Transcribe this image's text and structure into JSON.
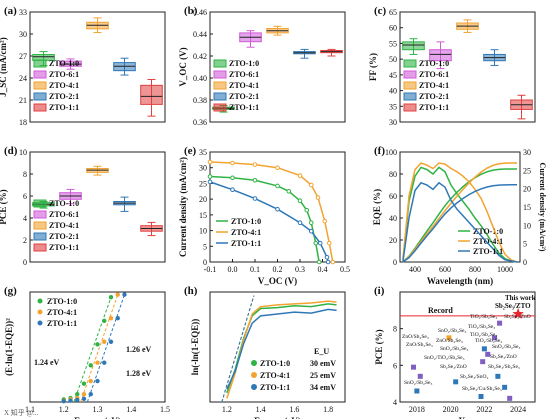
{
  "colors": {
    "green": "#2fb344",
    "magenta": "#d05bd8",
    "orange": "#f2a330",
    "blue": "#2f78b8",
    "red": "#e04040",
    "record": "#e8262d"
  },
  "chart_data": [
    {
      "type": "box",
      "panel": "(a)",
      "ylabel": "J_SC (mA/cm²)",
      "ylim": [
        18,
        33
      ],
      "ytick_labels": [
        "18",
        "21",
        "24",
        "27",
        "30",
        "33"
      ],
      "legend": [
        "ZTO-1:0",
        "ZTO-6:1",
        "ZTO-4:1",
        "ZTO-2:1",
        "ZTO-1:1"
      ],
      "boxes": [
        {
          "name": "ZTO-1:0",
          "q1": 26.4,
          "median": 26.9,
          "q3": 27.2,
          "min": 25.7,
          "max": 27.6,
          "color": "#2fb344"
        },
        {
          "name": "ZTO-6:1",
          "q1": 25.6,
          "median": 25.9,
          "q3": 26.3,
          "min": 25.2,
          "max": 26.6,
          "color": "#d05bd8"
        },
        {
          "name": "ZTO-4:1",
          "q1": 30.7,
          "median": 31.2,
          "q3": 31.6,
          "min": 30.2,
          "max": 32.2,
          "color": "#f2a330"
        },
        {
          "name": "ZTO-2:1",
          "q1": 25.0,
          "median": 25.6,
          "q3": 26.1,
          "min": 24.4,
          "max": 26.7,
          "color": "#2f78b8"
        },
        {
          "name": "ZTO-1:1",
          "q1": 20.4,
          "median": 21.5,
          "q3": 23.0,
          "min": 18.8,
          "max": 23.8,
          "color": "#e04040"
        }
      ]
    },
    {
      "type": "box",
      "panel": "(b)",
      "ylabel": "V_OC (V)",
      "ylim": [
        0.36,
        0.46
      ],
      "ytick_labels": [
        "0.36",
        "0.38",
        "0.40",
        "0.42",
        "0.44",
        "0.46"
      ],
      "legend": [
        "ZTO-1:0",
        "ZTO-6:1",
        "ZTO-4:1",
        "ZTO-2:1",
        "ZTO-1:1"
      ],
      "boxes": [
        {
          "name": "ZTO-1:0",
          "q1": 0.3715,
          "median": 0.3725,
          "q3": 0.3735,
          "min": 0.369,
          "max": 0.375,
          "color": "#2fb344"
        },
        {
          "name": "ZTO-6:1",
          "q1": 0.433,
          "median": 0.437,
          "q3": 0.441,
          "min": 0.428,
          "max": 0.443,
          "color": "#d05bd8"
        },
        {
          "name": "ZTO-4:1",
          "q1": 0.441,
          "median": 0.443,
          "q3": 0.445,
          "min": 0.439,
          "max": 0.447,
          "color": "#f2a330"
        },
        {
          "name": "ZTO-2:1",
          "q1": 0.422,
          "median": 0.423,
          "q3": 0.424,
          "min": 0.418,
          "max": 0.426,
          "color": "#2f78b8"
        },
        {
          "name": "ZTO-1:1",
          "q1": 0.423,
          "median": 0.424,
          "q3": 0.425,
          "min": 0.42,
          "max": 0.426,
          "color": "#e04040"
        }
      ]
    },
    {
      "type": "box",
      "panel": "(c)",
      "ylabel": "FF (%)",
      "ylim": [
        30,
        65
      ],
      "ytick_labels": [
        "30",
        "35",
        "40",
        "45",
        "50",
        "55",
        "60",
        "65"
      ],
      "legend": [
        "ZTO-1:0",
        "ZTO-6:1",
        "ZTO-4:1",
        "ZTO-2:1",
        "ZTO-1:1"
      ],
      "boxes": [
        {
          "name": "ZTO-1:0",
          "q1": 53.0,
          "median": 54.5,
          "q3": 55.5,
          "min": 51.5,
          "max": 56.5,
          "color": "#2fb344"
        },
        {
          "name": "ZTO-6:1",
          "q1": 49.5,
          "median": 51.5,
          "q3": 53.0,
          "min": 47.0,
          "max": 55.5,
          "color": "#d05bd8"
        },
        {
          "name": "ZTO-4:1",
          "q1": 59.5,
          "median": 60.5,
          "q3": 61.5,
          "min": 58.5,
          "max": 62.5,
          "color": "#f2a330"
        },
        {
          "name": "ZTO-2:1",
          "q1": 49.5,
          "median": 50.5,
          "q3": 51.5,
          "min": 48.0,
          "max": 53.0,
          "color": "#2f78b8"
        },
        {
          "name": "ZTO-1:1",
          "q1": 34.0,
          "median": 35.5,
          "q3": 37.0,
          "min": 31.0,
          "max": 38.5,
          "color": "#e04040"
        }
      ]
    },
    {
      "type": "box",
      "panel": "(d)",
      "ylabel": "PCE (%)",
      "ylim": [
        0,
        10
      ],
      "ytick_labels": [
        "0",
        "2",
        "4",
        "6",
        "8",
        "10"
      ],
      "legend": [
        "ZTO-1:0",
        "ZTO-6:1",
        "ZTO-4:1",
        "ZTO-2:1",
        "ZTO-1:1"
      ],
      "boxes": [
        {
          "name": "ZTO-1:0",
          "q1": 5.1,
          "median": 5.25,
          "q3": 5.4,
          "min": 4.9,
          "max": 5.5,
          "color": "#2fb344"
        },
        {
          "name": "ZTO-6:1",
          "q1": 5.7,
          "median": 6.0,
          "q3": 6.3,
          "min": 5.3,
          "max": 6.6,
          "color": "#d05bd8"
        },
        {
          "name": "ZTO-4:1",
          "q1": 8.15,
          "median": 8.35,
          "q3": 8.5,
          "min": 7.9,
          "max": 8.7,
          "color": "#f2a330"
        },
        {
          "name": "ZTO-2:1",
          "q1": 5.2,
          "median": 5.35,
          "q3": 5.5,
          "min": 4.6,
          "max": 5.9,
          "color": "#2f78b8"
        },
        {
          "name": "ZTO-1:1",
          "q1": 2.8,
          "median": 3.05,
          "q3": 3.3,
          "min": 2.4,
          "max": 3.6,
          "color": "#e04040"
        }
      ]
    },
    {
      "type": "line",
      "panel": "(e)",
      "xlabel": "V_OC (V)",
      "ylabel": "Current density (mA/cm²)",
      "xlim": [
        -0.1,
        0.5
      ],
      "ylim": [
        0,
        35
      ],
      "xtick_labels": [
        "-0.1",
        "0.0",
        "0.1",
        "0.2",
        "0.3",
        "0.4",
        "0.5"
      ],
      "ytick_labels": [
        "0",
        "5",
        "10",
        "15",
        "20",
        "25",
        "30",
        "35"
      ],
      "series": [
        {
          "name": "ZTO-1:0",
          "color": "#2fb344",
          "x": [
            -0.1,
            0.0,
            0.1,
            0.2,
            0.25,
            0.3,
            0.33,
            0.35,
            0.37,
            0.385
          ],
          "y": [
            27.2,
            26.8,
            26.0,
            24.2,
            22.5,
            19.5,
            16.5,
            12.5,
            6.0,
            0.0
          ]
        },
        {
          "name": "ZTO-4:1",
          "color": "#f2a330",
          "x": [
            -0.1,
            0.0,
            0.1,
            0.2,
            0.3,
            0.35,
            0.38,
            0.41,
            0.43,
            0.446
          ],
          "y": [
            31.8,
            31.5,
            31.0,
            30.0,
            27.5,
            24.5,
            20.5,
            13.0,
            6.0,
            0.0
          ]
        },
        {
          "name": "ZTO-1:1",
          "color": "#2f78b8",
          "x": [
            -0.1,
            0.0,
            0.1,
            0.2,
            0.3,
            0.35,
            0.39,
            0.42,
            0.425
          ],
          "y": [
            25.5,
            23.0,
            20.2,
            16.8,
            12.5,
            9.8,
            6.0,
            1.5,
            0.0
          ]
        }
      ]
    },
    {
      "type": "line",
      "panel": "(f)",
      "xlabel": "Wavelength (nm)",
      "ylabel": "EQE (%)",
      "ylabel_right": "Current density (mA/cm²)",
      "xlim": [
        300,
        1100
      ],
      "ylim": [
        0,
        100
      ],
      "ylim_right": [
        0,
        30
      ],
      "xtick_labels": [
        "400",
        "600",
        "800",
        "1000"
      ],
      "ytick_labels": [
        "0",
        "20",
        "40",
        "60",
        "80",
        "100"
      ],
      "ytick_labels_right": [
        "0",
        "5",
        "10",
        "15",
        "20",
        "25",
        "30"
      ],
      "series": [
        {
          "name": "ZTO-1:0",
          "color": "#2fb344",
          "x": [
            320,
            360,
            400,
            440,
            480,
            520,
            560,
            600,
            640,
            680,
            720,
            760,
            800,
            840,
            880,
            920,
            960,
            1000,
            1040,
            1080
          ],
          "y": [
            2,
            55,
            78,
            86,
            84,
            80,
            86,
            82,
            70,
            62,
            55,
            48,
            40,
            33,
            25,
            16,
            8,
            3,
            1,
            0
          ]
        },
        {
          "name": "ZTO-4:1",
          "color": "#f2a330",
          "x": [
            320,
            360,
            400,
            440,
            480,
            520,
            560,
            600,
            640,
            680,
            720,
            760,
            800,
            840,
            880,
            920,
            960,
            1000,
            1040,
            1080
          ],
          "y": [
            3,
            60,
            84,
            90,
            88,
            85,
            90,
            89,
            85,
            82,
            78,
            73,
            66,
            58,
            46,
            32,
            18,
            7,
            2,
            0
          ]
        },
        {
          "name": "ZTO-1:1",
          "color": "#2f78b8",
          "x": [
            320,
            360,
            400,
            440,
            480,
            520,
            560,
            600,
            640,
            680,
            720,
            760,
            800,
            840,
            880,
            920,
            960,
            1000,
            1040,
            1080
          ],
          "y": [
            1,
            40,
            65,
            72,
            70,
            66,
            72,
            68,
            56,
            48,
            42,
            36,
            30,
            24,
            18,
            12,
            6,
            2,
            1,
            0
          ]
        }
      ]
    },
    {
      "type": "scatter",
      "panel": "(g)",
      "xlabel": "Energy (eV)",
      "ylabel": "(E·ln(1-EQE))²",
      "xlim": [
        1.1,
        1.5
      ],
      "xtick_labels": [
        "1.1",
        "1.2",
        "1.3",
        "1.4",
        "1.5"
      ],
      "annotations": [
        "1.24 eV",
        "1.26 eV",
        "1.28 eV"
      ],
      "series": [
        {
          "name": "ZTO-1:0",
          "color": "#2fb344",
          "x": [
            1.2,
            1.22,
            1.24,
            1.26,
            1.28,
            1.3,
            1.32,
            1.34
          ],
          "y": [
            0.1,
            0.15,
            0.3,
            0.7,
            1.4,
            2.2,
            3.1,
            4.0
          ]
        },
        {
          "name": "ZTO-4:1",
          "color": "#f2a330",
          "x": [
            1.2,
            1.22,
            1.24,
            1.26,
            1.28,
            1.3,
            1.32,
            1.34,
            1.36
          ],
          "y": [
            0.05,
            0.1,
            0.15,
            0.3,
            0.8,
            1.5,
            2.3,
            3.2,
            4.1
          ]
        },
        {
          "name": "ZTO-1:1",
          "color": "#2f78b8",
          "x": [
            1.2,
            1.22,
            1.24,
            1.26,
            1.28,
            1.3,
            1.32,
            1.34,
            1.36,
            1.38
          ],
          "y": [
            0.03,
            0.05,
            0.08,
            0.12,
            0.3,
            0.8,
            1.5,
            2.3,
            3.2,
            4.1
          ]
        }
      ]
    },
    {
      "type": "line",
      "panel": "(h)",
      "xlabel": "Energy (eV)",
      "ylabel": "ln(-ln(1-EQE))",
      "xlim": [
        1.1,
        1.9
      ],
      "xtick_labels": [
        "1.2",
        "1.4",
        "1.6",
        "1.8"
      ],
      "legend_title": "E_U",
      "series": [
        {
          "name": "ZTO-1:0",
          "eu": "30 emV",
          "color": "#2fb344",
          "x": [
            1.2,
            1.25,
            1.3,
            1.35,
            1.4,
            1.5,
            1.6,
            1.7,
            1.8,
            1.85
          ],
          "y": [
            -4.5,
            -3.2,
            -1.5,
            -0.3,
            0.1,
            0.15,
            0.25,
            0.2,
            0.35,
            0.3
          ]
        },
        {
          "name": "ZTO-4:1",
          "eu": "25 emV",
          "color": "#f2a330",
          "x": [
            1.2,
            1.25,
            1.3,
            1.35,
            1.4,
            1.5,
            1.6,
            1.7,
            1.8,
            1.85
          ],
          "y": [
            -4.8,
            -3.4,
            -1.6,
            -0.2,
            0.2,
            0.3,
            0.35,
            0.4,
            0.5,
            0.45
          ]
        },
        {
          "name": "ZTO-1:1",
          "eu": "34 emV",
          "color": "#2f78b8",
          "x": [
            1.2,
            1.25,
            1.3,
            1.35,
            1.4,
            1.5,
            1.6,
            1.7,
            1.8,
            1.85
          ],
          "y": [
            -4.3,
            -3.3,
            -1.8,
            -0.7,
            -0.3,
            -0.2,
            -0.1,
            -0.15,
            0.05,
            0.0
          ]
        }
      ]
    },
    {
      "type": "scatter",
      "panel": "(i)",
      "xlabel": "Year",
      "ylabel": "PCE (%)",
      "xlim": [
        2017,
        2025
      ],
      "ylim": [
        4,
        10
      ],
      "xtick_labels": [
        "2018",
        "2020",
        "2022",
        "2024"
      ],
      "ytick_labels": [
        "4",
        "6",
        "8"
      ],
      "record_label": "Record",
      "this_work_label": "This work",
      "this_work_formula": "Sb₂Se₃/ZTO",
      "points": [
        {
          "label": "ZnO/Sb₂Se₃",
          "x": 2017.8,
          "y": 5.9,
          "color": "#7f5fbf"
        },
        {
          "label": "TiO₂/Sb₂Se₃",
          "x": 2018.2,
          "y": 5.4,
          "color": "#7f5fbf"
        },
        {
          "label": "SnO₂/Sb₂Se₃",
          "x": 2019.9,
          "y": 7.5,
          "color": "#f2a330"
        },
        {
          "label": "SnO₂/TiO₂/Sb₂Se₃",
          "x": 2020.3,
          "y": 5.1,
          "color": "#2f78b8"
        },
        {
          "label": "TiO₂/Sb₂Se₃",
          "x": 2021.9,
          "y": 6.2,
          "color": "#7f5fbf"
        },
        {
          "label": "ZnO/Sb₂Se₃",
          "x": 2022.0,
          "y": 6.9,
          "color": "#2f78b8"
        },
        {
          "label": "TiO₂/Sb₂Se₃",
          "x": 2022.2,
          "y": 6.6,
          "color": "#7f5fbf"
        },
        {
          "label": "TiO₂/Sb₂S₃",
          "x": 2022.9,
          "y": 8.3,
          "color": "#7f5fbf"
        },
        {
          "label": "TiO₂/Sb₂Se₃",
          "x": 2022.6,
          "y": 7.5,
          "color": "#7f5fbf"
        },
        {
          "label": "Sb₂Se₃/SnO₂",
          "x": 2022.8,
          "y": 5.4,
          "color": "#2f78b8"
        },
        {
          "label": "Sb₂Se₃/ZnO",
          "x": 2023.2,
          "y": 4.8,
          "color": "#2f78b8"
        },
        {
          "label": "Sb₂Se₃/Cu/Sb₂Se₃",
          "x": 2023.5,
          "y": 4.2,
          "color": "#7f5fbf"
        },
        {
          "label": "SnO₂/Sb₂Se₃",
          "x": 2018.0,
          "y": 4.6,
          "color": "#2f78b8"
        },
        {
          "label": "Sb₂Se₃/SnO₂",
          "x": 2021.8,
          "y": 4.3,
          "color": "#2f78b8"
        },
        {
          "label": "Sb₂Se₃/ZTO",
          "x": 2024.0,
          "y": 8.8,
          "color": "#e8262d"
        }
      ],
      "labels_text": [
        "TiO₂/Sb₂Se₃",
        "ZnO/Sb₂Se₃",
        "SnO₂/Sb₂Se₃",
        "Sb₂Se₃/ZnO",
        "TiO₂/Sb₂Se₃",
        "TiO₂/Sb₂Se₃",
        "ZnO/Sb₂Se₃",
        "SnO₂/TiO₂/Sb₂Se₃",
        "SnO₂/Sb₂Se₃",
        "SnO₂/Sb₂Se₃",
        "ZnO/Sb₂Se₃",
        "Sb₂Se₃/ZnO",
        "Sb₂Se₃/Sb₂Se₃",
        "Sb₂Se₃/Cu/Sb₂Se₃",
        "TiO₂/Sb₂Se₃",
        "Sb₂Se₃/SnO₂",
        "SnO₂/Sb₂Se₃",
        "Sb₂Se₃/ZnO"
      ]
    }
  ],
  "watermark": "X 知乎 @..."
}
